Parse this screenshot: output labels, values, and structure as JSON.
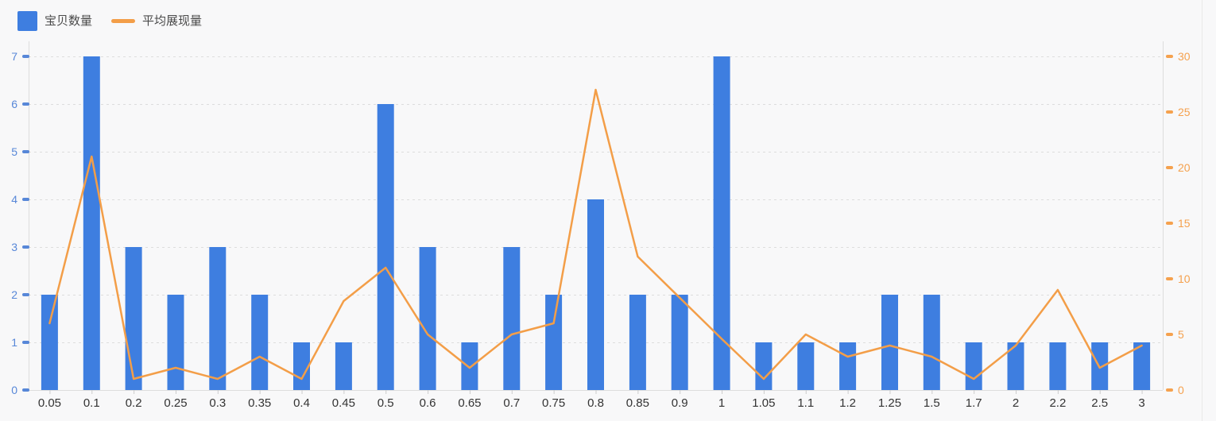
{
  "legend": {
    "items": [
      {
        "label": "宝贝数量",
        "series": "bar",
        "marker": "square",
        "color": "#3E7EE0"
      },
      {
        "label": "平均展现量",
        "series": "line",
        "marker": "line",
        "color": "#F39E48"
      }
    ]
  },
  "chart_data": {
    "type": "bar+line",
    "title": "",
    "legend_position": "top-left",
    "categories": [
      "0.05",
      "0.1",
      "0.2",
      "0.25",
      "0.3",
      "0.35",
      "0.4",
      "0.45",
      "0.5",
      "0.6",
      "0.65",
      "0.7",
      "0.75",
      "0.8",
      "0.85",
      "0.9",
      "1",
      "1.05",
      "1.1",
      "1.2",
      "1.25",
      "1.5",
      "1.7",
      "2",
      "2.2",
      "2.5",
      "3"
    ],
    "series": [
      {
        "name": "宝贝数量",
        "type": "bar",
        "y_axis": "left",
        "color": "#3E7EE0",
        "values": [
          2,
          7,
          3,
          2,
          3,
          2,
          1,
          1,
          6,
          3,
          1,
          3,
          2,
          4,
          2,
          2,
          7,
          1,
          1,
          1,
          2,
          2,
          1,
          1,
          1,
          1,
          1
        ]
      },
      {
        "name": "平均展现量",
        "type": "line",
        "y_axis": "right",
        "color": "#F39E48",
        "values": [
          6,
          21,
          1,
          2,
          1,
          3,
          1,
          8,
          11,
          5,
          2,
          5,
          6,
          27,
          12,
          8.3,
          4.6,
          1,
          5,
          3,
          4,
          3,
          1,
          4,
          9,
          2,
          4
        ]
      }
    ],
    "left_axis": {
      "min": 0,
      "max": 7,
      "ticks": [
        0,
        1,
        2,
        3,
        4,
        5,
        6,
        7
      ],
      "color": "#5787D8"
    },
    "right_axis": {
      "min": 0,
      "max": 30,
      "ticks": [
        0,
        5,
        10,
        15,
        20,
        25,
        30
      ],
      "color": "#F5A14E"
    },
    "grid": {
      "horizontal_dashed": true,
      "color": "#DDDDDD"
    },
    "axis_line_color": "#DDDDDD",
    "x_tick_color": "#CCCCCC",
    "x_label_color": "#333333"
  }
}
